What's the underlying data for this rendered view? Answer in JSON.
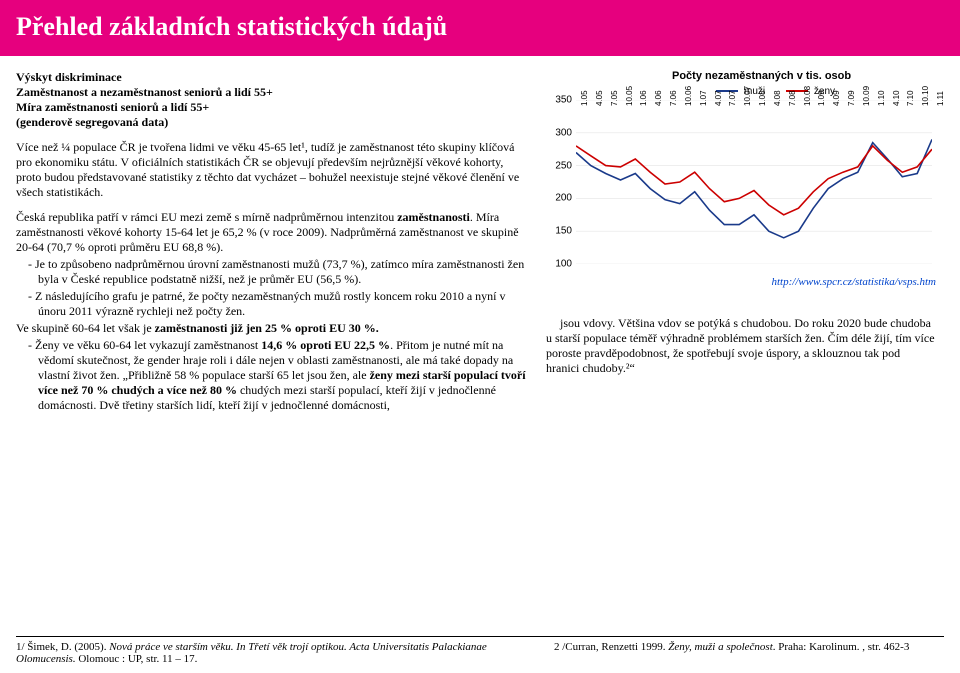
{
  "header": {
    "title": "Přehled základních statistických údajů"
  },
  "intro": {
    "l1": "Výskyt diskriminace",
    "l2": "Zaměstnanost a nezaměstnanost seniorů a lidí 55+",
    "l3": "Míra zaměstnanosti seniorů a lidí 55+",
    "l4": "(genderově segregovaná data)"
  },
  "para1": "Více než ¼ populace ČR je tvořena lidmi ve věku 45-65 let¹, tudíž je zaměstnanost této skupiny klíčová pro ekonomiku státu. V oficiálních statistikách ČR se objevují především nejrůznější věkové kohorty, proto budou představované statistiky z těchto dat vycházet – bohužel neexistuje stejné věkové členění ve všech statistikách.",
  "para2_a": "Česká republika patří v rámci EU mezi země s mírně nadprůměrnou intenzitou ",
  "para2_b": "zaměstnanosti",
  "para2_c": ". Míra zaměstnanosti věkové kohorty 15-64 let je 65,2 % (v roce 2009). Nadprůměrná zaměstnanost ve skupině 20-64 (70,7 % oproti průměru EU 68,8 %).",
  "bullet1": "-  Je to způsobeno nadprůměrnou úrovní zaměstnanosti mužů (73,7 %), zatímco míra zaměstnanosti žen byla v České republice podstatně nižší, než je průměr EU (56,5 %).",
  "bullet2": "-  Z následujícího grafu je patrné, že počty nezaměstnaných mužů rostly koncem roku 2010  a nyní v únoru 2011 výrazně rychleji než počty žen.",
  "para3_a": "Ve skupině 60-64 let však je ",
  "para3_b": "zaměstnanosti již jen 25 % oproti EU 30 %.",
  "bullet3_a": "-  Ženy ve věku 60-64 let vykazují zaměstnanost ",
  "bullet3_b": "14,6 % oproti EU 22,5 %",
  "bullet3_c": ". Přitom je nutné mít na vědomí skutečnost, že gender hraje roli i dále nejen v oblasti zaměstnanosti, ale má také dopady na vlastní život žen. „Přibližně 58 % populace starší 65 let jsou žen, ale ",
  "bullet3_d": "ženy mezi starší populací tvoří více než 70 % chudých a více než 80 %",
  "bullet3_e": " chudých mezi starší populací, kteří žijí v jednočlenné domácnosti. Dvě třetiny starších lidí, kteří žijí v jednočlenné domácnosti,",
  "right_body": "jsou vdovy. Většina vdov se potýká s chudobou. Do roku 2020 bude chudoba u starší populace téměř výhradně problémem starších žen. Čím déle žijí, tím více poroste pravděpodobnost, že spotřebují svoje úspory, a sklouznou tak pod hranici chudoby.²“",
  "chart": {
    "title": "Počty nezaměstnaných v tis. osob",
    "legend": {
      "men": "muži",
      "women": "ženy"
    },
    "colors": {
      "men": "#1a3a8a",
      "women": "#cc0000",
      "axis": "#000000",
      "grid": "#cccccc",
      "bg": "#ffffff"
    },
    "ylim": [
      100,
      350
    ],
    "ytick_step": 50,
    "yticks": [
      "350",
      "300",
      "250",
      "200",
      "150",
      "100"
    ],
    "x_labels": [
      "1.05",
      "4.05",
      "7.05",
      "10.05",
      "1.06",
      "4.06",
      "7.06",
      "10.06",
      "1.07",
      "4.07",
      "7.07",
      "10.07",
      "1.08",
      "4.08",
      "7.08",
      "10.08",
      "1.09",
      "4.09",
      "7.09",
      "10.09",
      "1.10",
      "4.10",
      "7.10",
      "10.10",
      "1.11"
    ],
    "men": [
      270,
      250,
      238,
      228,
      238,
      215,
      198,
      192,
      210,
      182,
      160,
      160,
      175,
      150,
      140,
      150,
      185,
      215,
      230,
      240,
      285,
      260,
      233,
      238,
      290
    ],
    "women": [
      280,
      265,
      250,
      248,
      260,
      240,
      222,
      225,
      240,
      215,
      195,
      200,
      212,
      190,
      175,
      185,
      210,
      230,
      240,
      248,
      280,
      258,
      240,
      248,
      275
    ],
    "source_url": "http://www.spcr.cz/statistika/vsps.htm"
  },
  "footnotes": {
    "left_a": "1/ Šimek, D. (2005). ",
    "left_b": "Nová práce ve starším věku. In Třetí věk trojí optikou. Acta Universitatis Palackianae Olomucensis.",
    "left_c": " Olomouc : UP, str. 11 – 17.",
    "right_a": "2 /Curran, Renzetti 1999. ",
    "right_b": "Ženy, muži a společnost",
    "right_c": ". Praha: Karolinum. , str. 462-3"
  }
}
